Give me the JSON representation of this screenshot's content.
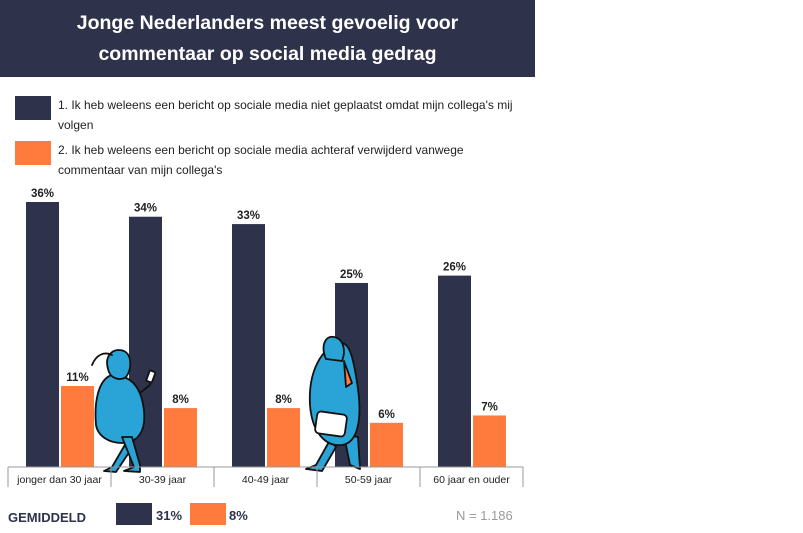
{
  "header": {
    "title": "Jonge Nederlanders meest gevoelig voor commentaar op social media gedrag"
  },
  "legend": [
    {
      "label": "1. Ik heb weleens een bericht op sociale media niet geplaatst omdat mijn collega's mij volgen",
      "color": "#2e324b"
    },
    {
      "label": "2. Ik heb weleens een bericht op sociale media achteraf verwijderd vanwege commentaar van mijn collega's",
      "color": "#ff7a3d"
    }
  ],
  "chart_data": {
    "type": "bar",
    "title": "Jonge Nederlanders meest gevoelig voor commentaar op social media gedrag",
    "categories": [
      "jonger dan 30 jaar",
      "30-39 jaar",
      "40-49 jaar",
      "50-59 jaar",
      "60 jaar en ouder"
    ],
    "series": [
      {
        "name": "1. Ik heb weleens een bericht op sociale media niet geplaatst omdat mijn collega's mij volgen",
        "color": "#2e324b",
        "values": [
          36,
          34,
          33,
          25,
          26
        ],
        "labels": [
          "36%",
          "34%",
          "33%",
          "25%",
          "26%"
        ]
      },
      {
        "name": "2. Ik heb weleens een bericht op sociale media achteraf verwijderd vanwege commentaar van mijn collega's",
        "color": "#ff7a3d",
        "values": [
          11,
          8,
          8,
          6,
          7
        ],
        "labels": [
          "11%",
          "8%",
          "8%",
          "6%",
          "7%"
        ]
      }
    ],
    "ylim": [
      0,
      36
    ],
    "grid": false,
    "legend_position": "top"
  },
  "footer": {
    "average_label": "GEMIDDELD",
    "average_series1": "31%",
    "average_series2": "8%",
    "sample_size": "N = 1.186"
  },
  "icons": {
    "figure1": "woman-with-phone-illustration",
    "figure2": "man-with-tablet-illustration"
  }
}
